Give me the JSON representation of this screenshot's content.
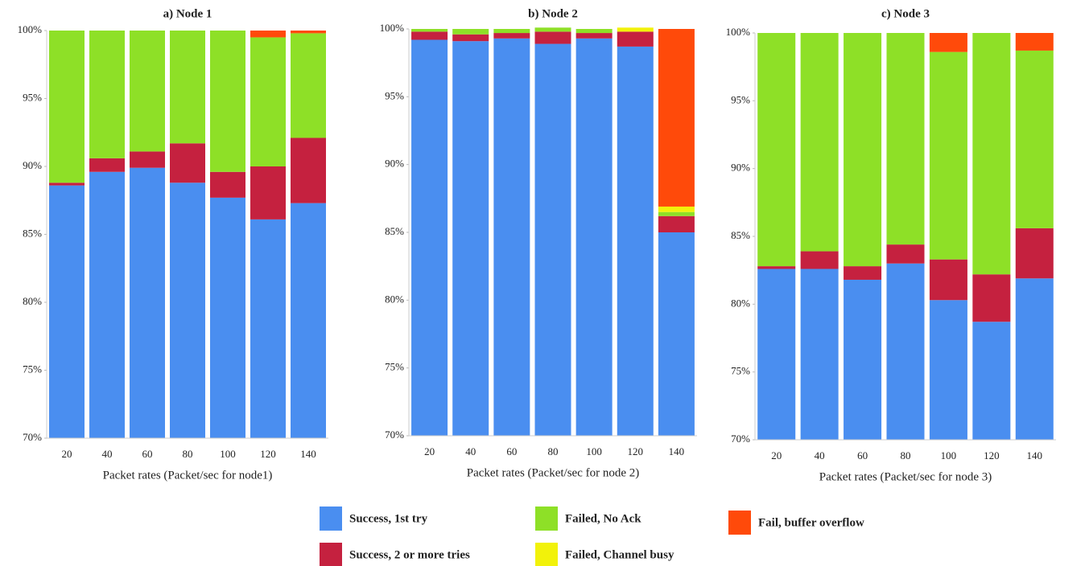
{
  "chart_data": [
    {
      "type": "bar",
      "title": "a) Node 1",
      "xlabel": "Packet rates (Packet/sec for node1)",
      "categories": [
        "20",
        "40",
        "60",
        "80",
        "100",
        "120",
        "140"
      ],
      "series": [
        {
          "values": [
            88.6,
            89.6,
            89.9,
            88.8,
            87.7,
            86.1,
            87.3
          ]
        },
        {
          "values": [
            0.2,
            1.0,
            1.2,
            2.9,
            1.9,
            3.9,
            4.8
          ]
        },
        {
          "values": [
            11.2,
            9.4,
            8.9,
            8.3,
            10.4,
            9.5,
            7.7
          ]
        },
        {
          "values": [
            0,
            0,
            0,
            0,
            0,
            0,
            0
          ]
        },
        {
          "values": [
            0,
            0,
            0,
            0,
            0,
            0.5,
            0.2
          ]
        }
      ],
      "ylim": [
        70,
        100
      ],
      "yticks": [
        {
          "value": 70,
          "label": "70%"
        },
        {
          "value": 75,
          "label": "75%"
        },
        {
          "value": 80,
          "label": "80%"
        },
        {
          "value": 85,
          "label": "85%"
        },
        {
          "value": 90,
          "label": "90%"
        },
        {
          "value": 95,
          "label": "95%"
        },
        {
          "value": 100,
          "label": "100%"
        }
      ]
    },
    {
      "type": "bar",
      "title": "b) Node 2",
      "xlabel": "Packet rates (Packet/sec for node 2)",
      "categories": [
        "20",
        "40",
        "60",
        "80",
        "100",
        "120",
        "140"
      ],
      "series": [
        {
          "values": [
            99.2,
            99.1,
            99.3,
            98.9,
            99.3,
            98.7,
            85.0
          ]
        },
        {
          "values": [
            0.6,
            0.5,
            0.4,
            0.9,
            0.4,
            1.1,
            1.2
          ]
        },
        {
          "values": [
            0.2,
            0.4,
            0.3,
            0.3,
            0.3,
            0,
            0.3
          ]
        },
        {
          "values": [
            0,
            0,
            0,
            0,
            0,
            0.3,
            0.4
          ]
        },
        {
          "values": [
            0,
            0,
            0,
            0,
            0,
            0,
            13.1
          ]
        }
      ],
      "ylim": [
        70,
        100
      ],
      "yticks": [
        {
          "value": 70,
          "label": "70%"
        },
        {
          "value": 75,
          "label": "75%"
        },
        {
          "value": 80,
          "label": "80%"
        },
        {
          "value": 85,
          "label": "85%"
        },
        {
          "value": 90,
          "label": "90%"
        },
        {
          "value": 95,
          "label": "95%"
        },
        {
          "value": 100,
          "label": "100%"
        }
      ]
    },
    {
      "type": "bar",
      "title": "c) Node 3",
      "xlabel": "Packet rates (Packet/sec for node 3)",
      "categories": [
        "20",
        "40",
        "60",
        "80",
        "100",
        "120",
        "140"
      ],
      "series": [
        {
          "values": [
            82.6,
            82.6,
            81.8,
            83.0,
            80.3,
            78.7,
            81.9
          ]
        },
        {
          "values": [
            0.2,
            1.3,
            1.0,
            1.4,
            3.0,
            3.5,
            3.7
          ]
        },
        {
          "values": [
            17.2,
            16.1,
            17.2,
            15.6,
            15.3,
            17.8,
            13.1
          ]
        },
        {
          "values": [
            0,
            0,
            0,
            0,
            0,
            0,
            0
          ]
        },
        {
          "values": [
            0,
            0,
            0,
            0,
            1.4,
            0,
            1.3
          ]
        }
      ],
      "ylim": [
        70,
        100
      ],
      "yticks": [
        {
          "value": 70,
          "label": "70%"
        },
        {
          "value": 75,
          "label": "75%"
        },
        {
          "value": 80,
          "label": "80%"
        },
        {
          "value": 85,
          "label": "85%"
        },
        {
          "value": 90,
          "label": "90%"
        },
        {
          "value": 95,
          "label": "95%"
        },
        {
          "value": 100,
          "label": "100%"
        }
      ]
    }
  ],
  "legend": [
    {
      "name": "Success, 1st try",
      "color": "#4a8ef0"
    },
    {
      "name": "Success, 2 or more tries",
      "color": "#c5213f"
    },
    {
      "name": "Failed, No Ack",
      "color": "#8ee027"
    },
    {
      "name": "Failed, Channel busy",
      "color": "#f2f20a"
    },
    {
      "name": "Fail, buffer overflow",
      "color": "#ff4a0a"
    }
  ]
}
